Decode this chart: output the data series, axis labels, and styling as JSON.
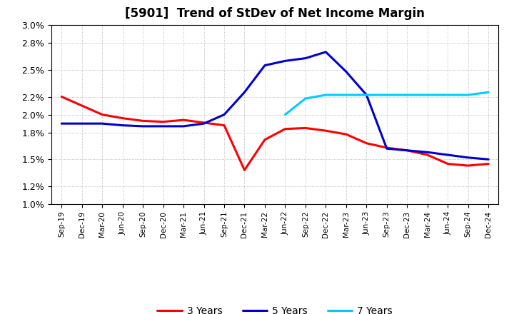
{
  "title": "[5901]  Trend of StDev of Net Income Margin",
  "ylim": [
    0.01,
    0.03
  ],
  "ytick_vals": [
    0.01,
    0.012,
    0.015,
    0.018,
    0.02,
    0.022,
    0.025,
    0.028,
    0.03
  ],
  "ytick_labels": [
    "1.0%",
    "1.2%",
    "1.5%",
    "1.8%",
    "2.0%",
    "2.2%",
    "2.5%",
    "2.8%",
    "3.0%"
  ],
  "x_labels": [
    "Sep-19",
    "Dec-19",
    "Mar-20",
    "Jun-20",
    "Sep-20",
    "Dec-20",
    "Mar-21",
    "Jun-21",
    "Sep-21",
    "Dec-21",
    "Mar-22",
    "Jun-22",
    "Sep-22",
    "Dec-22",
    "Mar-23",
    "Jun-23",
    "Sep-23",
    "Dec-23",
    "Mar-24",
    "Jun-24",
    "Sep-24",
    "Dec-24"
  ],
  "series_3y": [
    0.022,
    0.021,
    0.02,
    0.0196,
    0.0193,
    0.0192,
    0.0194,
    0.0191,
    0.0188,
    0.0138,
    0.0172,
    0.0184,
    0.0185,
    0.0182,
    0.0178,
    0.0168,
    0.0163,
    0.016,
    0.0155,
    0.0145,
    0.0143,
    0.0145
  ],
  "series_5y": [
    0.019,
    0.019,
    0.019,
    0.0188,
    0.0187,
    0.0187,
    0.0187,
    0.019,
    0.02,
    0.0225,
    0.0255,
    0.026,
    0.0263,
    0.027,
    0.0248,
    0.0222,
    0.0162,
    0.016,
    0.0158,
    0.0155,
    0.0152,
    0.015
  ],
  "series_7y": [
    null,
    null,
    null,
    null,
    null,
    null,
    null,
    null,
    null,
    null,
    null,
    0.02,
    0.0218,
    0.0222,
    0.0222,
    0.0222,
    0.0222,
    0.0222,
    0.0222,
    0.0222,
    0.0222,
    0.0225
  ],
  "series_10y": [
    null,
    null,
    null,
    null,
    null,
    null,
    null,
    null,
    null,
    null,
    null,
    null,
    null,
    null,
    null,
    null,
    null,
    null,
    null,
    null,
    null,
    null
  ],
  "color_3y": "#ff0000",
  "color_5y": "#0000cc",
  "color_7y": "#00ccff",
  "color_10y": "#009900",
  "linewidth": 2.2,
  "background_color": "#ffffff",
  "grid_color": "#999999",
  "title_fontsize": 12,
  "legend_fontsize": 10
}
